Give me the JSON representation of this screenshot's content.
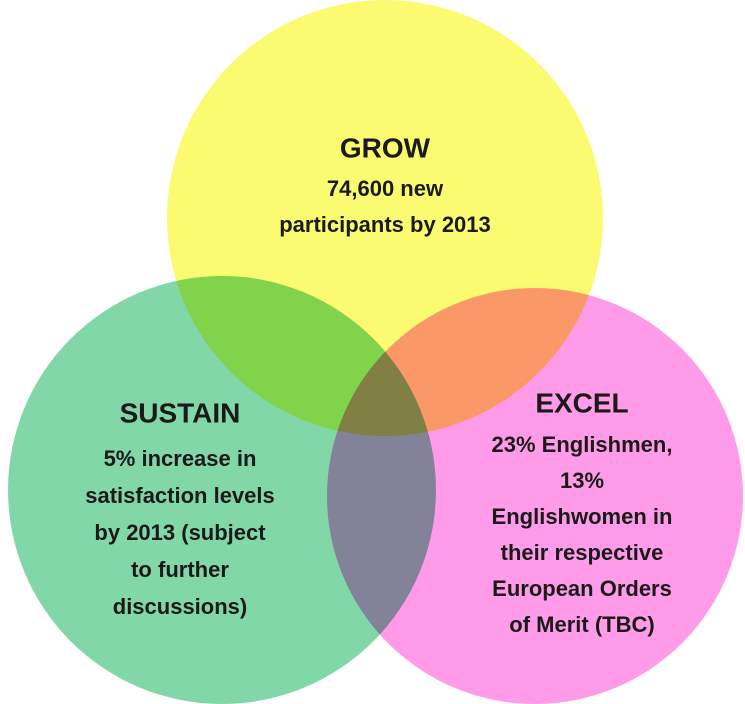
{
  "circles": [
    {
      "title": "GROW",
      "lines": [
        "74,600 new",
        "participants by 2013"
      ]
    },
    {
      "title": "SUSTAIN",
      "lines": [
        "5% increase in",
        "satisfaction levels",
        "by 2013 (subject",
        "to further",
        "discussions)"
      ]
    },
    {
      "title": "EXCEL",
      "lines": [
        "23% Englishmen,",
        "13%",
        "Englishwomen in",
        "their respective",
        "European Orders",
        "of Merit (TBC)"
      ]
    }
  ]
}
